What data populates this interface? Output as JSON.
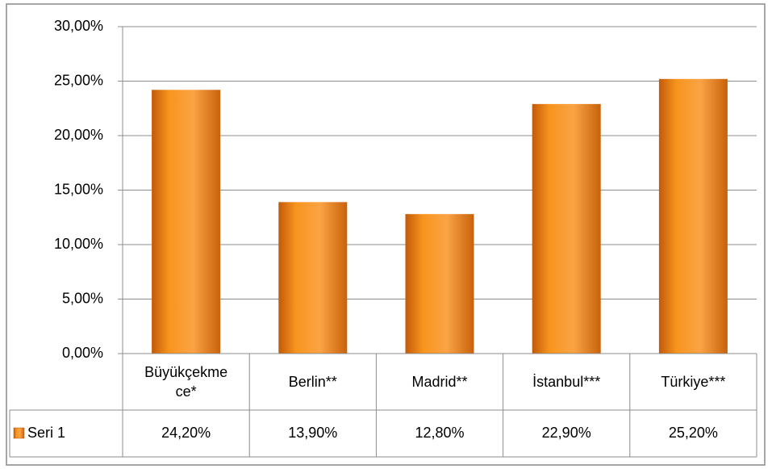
{
  "chart_data": {
    "type": "bar",
    "categories": [
      "Büyükçekmece*",
      "Berlin**",
      "Madrid**",
      "İstanbul***",
      "Türkiye***"
    ],
    "series": [
      {
        "name": "Seri 1",
        "color": "#f7941d",
        "values": [
          24.2,
          13.9,
          12.8,
          22.9,
          25.2
        ],
        "value_labels": [
          "24,20%",
          "13,90%",
          "12,80%",
          "22,90%",
          "25,20%"
        ]
      }
    ],
    "ylim": [
      0,
      30
    ],
    "yticks": [
      {
        "value": 0,
        "label": "0,00%"
      },
      {
        "value": 5,
        "label": "5,00%"
      },
      {
        "value": 10,
        "label": "10,00%"
      },
      {
        "value": 15,
        "label": "15,00%"
      },
      {
        "value": 20,
        "label": "20,00%"
      },
      {
        "value": 25,
        "label": "25,00%"
      },
      {
        "value": 30,
        "label": "30,00%"
      }
    ],
    "grid": true,
    "data_table": true
  }
}
